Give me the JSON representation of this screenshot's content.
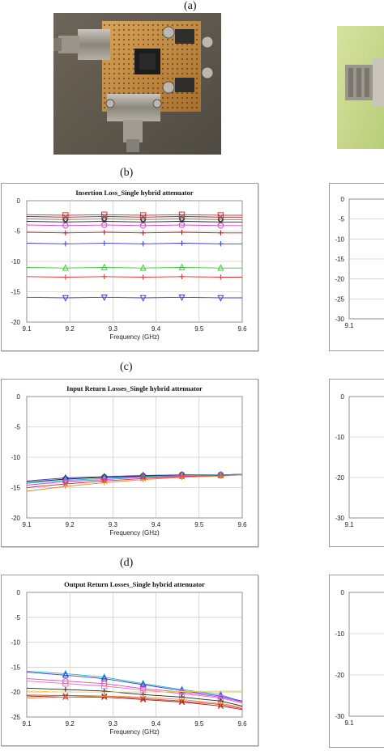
{
  "panels": {
    "a": "(a)",
    "b": "(b)",
    "c": "(c)",
    "d": "(d)"
  },
  "photos": {
    "left_alt": "Photo of single hybrid attenuator circuit board",
    "right_alt": "Photo of attenuator with connector"
  },
  "charts": [
    {
      "title": "Insertion Loss_Single hybrid attenuator",
      "xlabel": "Frequency (GHz)",
      "xlim": [
        9.1,
        9.6
      ],
      "ylim": [
        -20,
        0
      ],
      "xticks": [
        "9.1",
        "9.2",
        "9.3",
        "9.4",
        "9.5",
        "9.6"
      ],
      "yticks": [
        "0",
        "-5",
        "-10",
        "-15",
        "-20"
      ]
    },
    {
      "title": "Input Return Losses_Single hybrid attenuator",
      "xlabel": "Frequency (GHz)",
      "xlim": [
        9.1,
        9.6
      ],
      "ylim": [
        -20,
        0
      ],
      "xticks": [
        "9.1",
        "9.2",
        "9.3",
        "9.4",
        "9.5",
        "9.6"
      ],
      "yticks": [
        "0",
        "-5",
        "-10",
        "-15",
        "-20"
      ]
    },
    {
      "title": "Output Return Losses_Single hybrid attenuator",
      "xlabel": "Frequency (GHz)",
      "xlim": [
        9.1,
        9.6
      ],
      "ylim": [
        -25,
        0
      ],
      "xticks": [
        "9.1",
        "9.2",
        "9.3",
        "9.4",
        "9.5",
        "9.6"
      ],
      "yticks": [
        "0",
        "-5",
        "-10",
        "-15",
        "-20",
        "-25"
      ]
    }
  ],
  "right_partial": [
    {
      "yticks": [
        "0",
        "-5",
        "-10",
        "-15",
        "-20",
        "-25",
        "-30"
      ],
      "xtick": "9.1"
    },
    {
      "yticks": [
        "0",
        "-10",
        "-20",
        "-30"
      ],
      "xtick": "9.1"
    },
    {
      "yticks": [
        "0",
        "-10",
        "-20",
        "-30"
      ],
      "xtick": "9.1"
    }
  ],
  "colors": {
    "grid": "#bdbdbd",
    "red": "#e0322f",
    "black": "#222222",
    "gray": "#777777",
    "magenta": "#e040e0",
    "blue": "#3b3bd6",
    "green": "#33cc33",
    "orange": "#e08a30",
    "cyan": "#21b6c8",
    "pink": "#f06fa8",
    "darkred": "#a02020",
    "yellow": "#e8d44a"
  },
  "chart_data": [
    {
      "type": "line",
      "title": "Insertion Loss_Single hybrid attenuator",
      "xlabel": "Frequency (GHz)",
      "ylabel": "",
      "xlim": [
        9.1,
        9.6
      ],
      "ylim": [
        -20,
        0
      ],
      "grid": true,
      "x": [
        9.1,
        9.19,
        9.28,
        9.37,
        9.46,
        9.55,
        9.6
      ],
      "series": [
        {
          "color": "red",
          "marker": "square",
          "values": [
            -2.3,
            -2.4,
            -2.3,
            -2.4,
            -2.3,
            -2.4,
            -2.4
          ]
        },
        {
          "color": "darkred",
          "marker": "x",
          "values": [
            -2.6,
            -2.7,
            -2.6,
            -2.7,
            -2.6,
            -2.7,
            -2.7
          ]
        },
        {
          "color": "gray",
          "marker": "circle",
          "values": [
            -3.0,
            -3.1,
            -3.0,
            -3.1,
            -3.0,
            -3.1,
            -3.1
          ]
        },
        {
          "color": "black",
          "marker": "x",
          "values": [
            -3.4,
            -3.5,
            -3.4,
            -3.5,
            -3.4,
            -3.5,
            -3.5
          ]
        },
        {
          "color": "magenta",
          "marker": "circle",
          "values": [
            -4.0,
            -4.1,
            -4.0,
            -4.1,
            -4.0,
            -4.1,
            -4.1
          ]
        },
        {
          "color": "darkred",
          "marker": "plus",
          "values": [
            -5.2,
            -5.3,
            -5.2,
            -5.3,
            -5.2,
            -5.3,
            -5.3
          ]
        },
        {
          "color": "blue",
          "marker": "plus",
          "values": [
            -7.0,
            -7.1,
            -7.0,
            -7.1,
            -7.0,
            -7.1,
            -7.1
          ]
        },
        {
          "color": "green",
          "marker": "triangle",
          "values": [
            -11.0,
            -11.1,
            -11.0,
            -11.1,
            -11.0,
            -11.1,
            -11.1
          ]
        },
        {
          "color": "red",
          "marker": "plus",
          "values": [
            -12.5,
            -12.6,
            -12.5,
            -12.6,
            -12.5,
            -12.6,
            -12.6
          ]
        },
        {
          "color": "blue",
          "marker": "triangle-down",
          "values": [
            -15.9,
            -16.0,
            -15.9,
            -16.0,
            -15.9,
            -16.0,
            -16.0
          ]
        }
      ]
    },
    {
      "type": "line",
      "title": "Input Return Losses_Single hybrid attenuator",
      "xlabel": "Frequency (GHz)",
      "ylabel": "",
      "xlim": [
        9.1,
        9.6
      ],
      "ylim": [
        -20,
        0
      ],
      "grid": true,
      "x": [
        9.1,
        9.19,
        9.28,
        9.37,
        9.46,
        9.55,
        9.6
      ],
      "series": [
        {
          "color": "blue",
          "marker": "triangle",
          "values": [
            -13.9,
            -13.4,
            -13.2,
            -13.0,
            -12.9,
            -12.9,
            -12.8
          ]
        },
        {
          "color": "black",
          "marker": "circle",
          "values": [
            -14.1,
            -13.6,
            -13.3,
            -13.1,
            -12.9,
            -12.9,
            -12.8
          ]
        },
        {
          "color": "cyan",
          "marker": "triangle",
          "values": [
            -14.3,
            -13.8,
            -13.5,
            -13.2,
            -13.0,
            -12.9,
            -12.8
          ]
        },
        {
          "color": "magenta",
          "marker": "circle",
          "values": [
            -14.6,
            -14.0,
            -13.7,
            -13.3,
            -13.1,
            -13.0,
            -12.9
          ]
        },
        {
          "color": "red",
          "marker": "x",
          "values": [
            -15.0,
            -14.4,
            -13.9,
            -13.5,
            -13.2,
            -13.0,
            -12.9
          ]
        },
        {
          "color": "orange",
          "marker": "plus",
          "values": [
            -15.6,
            -14.8,
            -14.2,
            -13.7,
            -13.3,
            -13.1,
            -12.9
          ]
        }
      ]
    },
    {
      "type": "line",
      "title": "Output Return Losses_Single hybrid attenuator",
      "xlabel": "Frequency (GHz)",
      "ylabel": "",
      "xlim": [
        9.1,
        9.6
      ],
      "ylim": [
        -25,
        0
      ],
      "grid": true,
      "x": [
        9.1,
        9.19,
        9.28,
        9.37,
        9.46,
        9.55,
        9.6
      ],
      "series": [
        {
          "color": "cyan",
          "marker": "triangle",
          "values": [
            -15.8,
            -16.3,
            -17.0,
            -18.3,
            -19.5,
            -20.5,
            -22.0
          ]
        },
        {
          "color": "blue",
          "marker": "triangle",
          "values": [
            -16.0,
            -16.6,
            -17.3,
            -18.5,
            -19.7,
            -20.8,
            -21.8
          ]
        },
        {
          "color": "magenta",
          "marker": "circle",
          "values": [
            -17.3,
            -17.8,
            -18.3,
            -19.3,
            -20.0,
            -21.0,
            -22.0
          ]
        },
        {
          "color": "pink",
          "marker": "square",
          "values": [
            -17.8,
            -18.3,
            -18.8,
            -19.6,
            -20.3,
            -21.2,
            -22.2
          ]
        },
        {
          "color": "black",
          "marker": "plus",
          "values": [
            -19.2,
            -19.5,
            -19.8,
            -20.5,
            -21.0,
            -21.8,
            -22.8
          ]
        },
        {
          "color": "yellow",
          "marker": "none",
          "values": [
            -19.8,
            -20.0,
            -20.0,
            -20.0,
            -19.9,
            -19.8,
            -19.8
          ]
        },
        {
          "color": "red",
          "marker": "x",
          "values": [
            -20.6,
            -20.7,
            -20.8,
            -21.3,
            -21.8,
            -22.5,
            -23.3
          ]
        },
        {
          "color": "darkred",
          "marker": "x",
          "values": [
            -20.8,
            -21.0,
            -21.0,
            -21.5,
            -22.0,
            -22.8,
            -23.5
          ]
        },
        {
          "color": "orange",
          "marker": "plus",
          "values": [
            -21.2,
            -21.0,
            -20.8,
            -21.0,
            -21.5,
            -22.3,
            -23.0
          ]
        }
      ]
    }
  ]
}
